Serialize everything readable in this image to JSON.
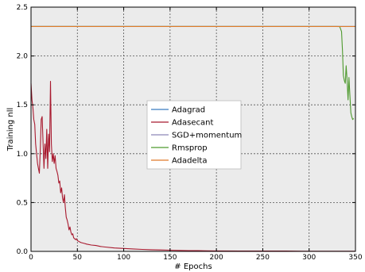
{
  "chart_data": {
    "type": "line",
    "title": "",
    "xlabel": "# Epochs",
    "ylabel": "Training nll",
    "xlim": [
      0,
      350
    ],
    "ylim": [
      0,
      2.5
    ],
    "xticks": [
      0,
      50,
      100,
      150,
      200,
      250,
      300,
      350
    ],
    "yticks": [
      0.0,
      0.5,
      1.0,
      1.5,
      2.0,
      2.5
    ],
    "xtick_labels": [
      "0",
      "50",
      "100",
      "150",
      "200",
      "250",
      "300",
      "350"
    ],
    "ytick_labels": [
      "0.0",
      "0.5",
      "1.0",
      "1.5",
      "2.0",
      "2.5"
    ],
    "grid": true,
    "legend_position": "center",
    "background": "#ebebeb",
    "series": [
      {
        "name": "Adagrad",
        "color": "#3a7cc1",
        "x": [
          0,
          350
        ],
        "y": [
          2.302,
          2.302
        ]
      },
      {
        "name": "Adasecant",
        "color": "#a8192e",
        "x": [
          0,
          1,
          2,
          3,
          4,
          5,
          6,
          7,
          8,
          9,
          10,
          11,
          12,
          13,
          14,
          15,
          16,
          17,
          18,
          19,
          20,
          21,
          22,
          23,
          24,
          25,
          26,
          27,
          28,
          29,
          30,
          31,
          32,
          33,
          34,
          35,
          36,
          37,
          38,
          39,
          40,
          41,
          42,
          43,
          44,
          45,
          46,
          47,
          48,
          49,
          50,
          52,
          54,
          56,
          58,
          60,
          65,
          70,
          75,
          80,
          90,
          100,
          110,
          120,
          130,
          140,
          150,
          160,
          170,
          180,
          190,
          200,
          225,
          250,
          275,
          300,
          325,
          350
        ],
        "y": [
          1.72,
          1.55,
          1.48,
          1.35,
          1.3,
          1.1,
          1.0,
          0.9,
          0.85,
          0.8,
          1.05,
          1.35,
          1.38,
          1.1,
          0.85,
          1.1,
          0.95,
          1.25,
          0.85,
          1.2,
          1.02,
          1.74,
          1.1,
          0.92,
          1.0,
          0.9,
          0.98,
          0.85,
          0.82,
          0.78,
          0.7,
          0.72,
          0.6,
          0.65,
          0.55,
          0.5,
          0.58,
          0.45,
          0.35,
          0.32,
          0.28,
          0.22,
          0.25,
          0.2,
          0.17,
          0.18,
          0.14,
          0.13,
          0.12,
          0.13,
          0.11,
          0.1,
          0.09,
          0.085,
          0.08,
          0.075,
          0.065,
          0.06,
          0.05,
          0.045,
          0.035,
          0.03,
          0.025,
          0.02,
          0.017,
          0.015,
          0.012,
          0.01,
          0.008,
          0.007,
          0.006,
          0.005,
          0.004,
          0.003,
          0.003,
          0.002,
          0.002,
          0.002
        ]
      },
      {
        "name": "SGD+momentum",
        "color": "#8e86b8",
        "x": [
          0,
          350
        ],
        "y": [
          2.302,
          2.302
        ]
      },
      {
        "name": "Rmsprop",
        "color": "#4e9a2e",
        "x": [
          0,
          330,
          333,
          335,
          336,
          337,
          338,
          339,
          340,
          341,
          342,
          343,
          344,
          345,
          346,
          347,
          348
        ],
        "y": [
          2.302,
          2.302,
          2.3,
          2.25,
          2.05,
          1.8,
          1.75,
          1.72,
          1.9,
          1.75,
          1.55,
          1.78,
          1.6,
          1.42,
          1.38,
          1.35,
          1.36
        ]
      },
      {
        "name": "Adadelta",
        "color": "#e07b2a",
        "x": [
          0,
          350
        ],
        "y": [
          2.302,
          2.302
        ]
      }
    ]
  }
}
